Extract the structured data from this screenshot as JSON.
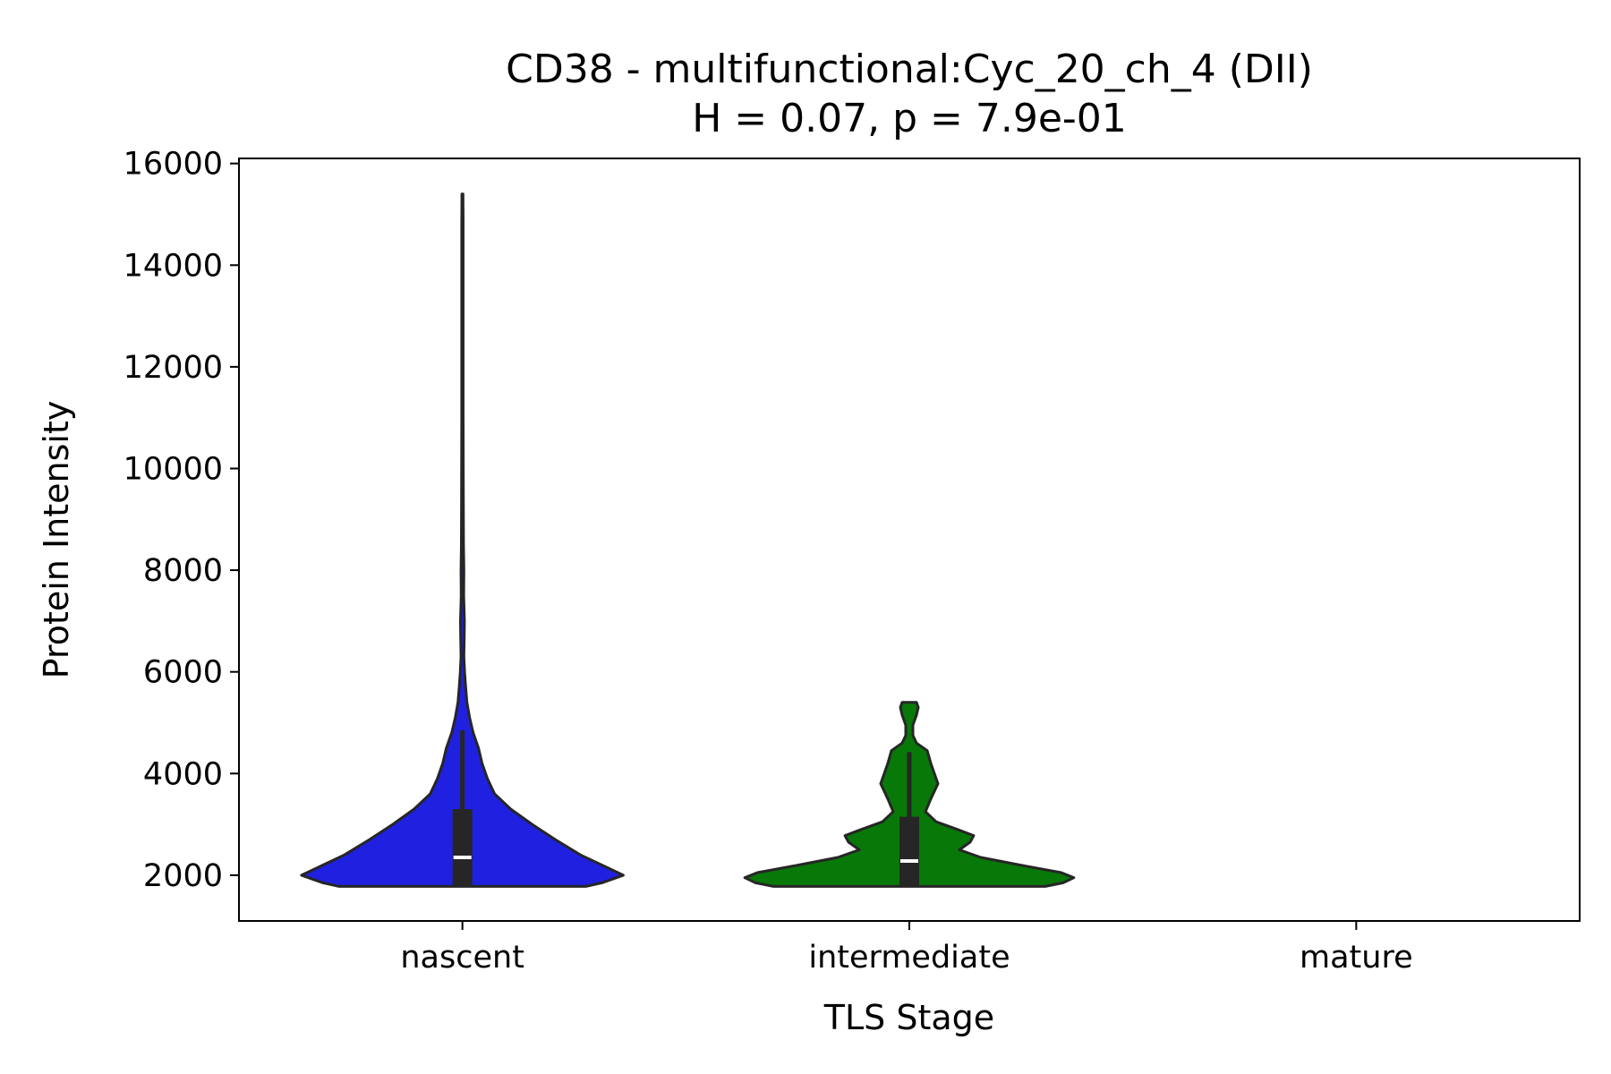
{
  "chart_data": {
    "type": "violin",
    "title": "CD38 - multifunctional:Cyc_20_ch_4 (DII)",
    "subtitle": "H = 0.07, p = 7.9e-01",
    "xlabel": "TLS Stage",
    "ylabel": "Protein Intensity",
    "categories": [
      "nascent",
      "intermediate",
      "mature"
    ],
    "ylim": [
      1100,
      16100
    ],
    "yticks": [
      2000,
      4000,
      6000,
      8000,
      10000,
      12000,
      14000,
      16000
    ],
    "ytick_labels": [
      "2000",
      "4000",
      "6000",
      "8000",
      "10000",
      "12000",
      "14000",
      "16000"
    ],
    "grid": false,
    "legend": "none",
    "series": [
      {
        "category": "nascent",
        "color": "#2020e0",
        "min": 1780,
        "max": 15400,
        "q1": 1780,
        "median": 2350,
        "q3": 3300,
        "whisker_low": 1780,
        "whisker_high": 4850,
        "density": [
          [
            1780,
            0.69
          ],
          [
            1850,
            0.78
          ],
          [
            2000,
            0.9
          ],
          [
            2150,
            0.81
          ],
          [
            2400,
            0.66
          ],
          [
            2700,
            0.52
          ],
          [
            3000,
            0.39
          ],
          [
            3300,
            0.27
          ],
          [
            3600,
            0.18
          ],
          [
            3900,
            0.14
          ],
          [
            4200,
            0.11
          ],
          [
            4500,
            0.09
          ],
          [
            4800,
            0.06
          ],
          [
            5100,
            0.04
          ],
          [
            5400,
            0.025
          ],
          [
            5700,
            0.018
          ],
          [
            6000,
            0.012
          ],
          [
            6300,
            0.008
          ],
          [
            6700,
            0.01
          ],
          [
            7000,
            0.011
          ],
          [
            7500,
            0.007
          ],
          [
            8000,
            0.008
          ],
          [
            8500,
            0.006
          ],
          [
            9500,
            0.005
          ],
          [
            11000,
            0.004
          ],
          [
            13000,
            0.004
          ],
          [
            14800,
            0.004
          ],
          [
            15400,
            0.003
          ]
        ]
      },
      {
        "category": "intermediate",
        "color": "#087808",
        "min": 1780,
        "max": 5400,
        "q1": 1780,
        "median": 2280,
        "q3": 3150,
        "whisker_low": 1780,
        "whisker_high": 4420,
        "density": [
          [
            1780,
            0.76
          ],
          [
            1850,
            0.86
          ],
          [
            1950,
            0.92
          ],
          [
            2050,
            0.85
          ],
          [
            2200,
            0.62
          ],
          [
            2350,
            0.4
          ],
          [
            2500,
            0.28
          ],
          [
            2650,
            0.34
          ],
          [
            2780,
            0.36
          ],
          [
            2900,
            0.27
          ],
          [
            3050,
            0.15
          ],
          [
            3250,
            0.09
          ],
          [
            3500,
            0.12
          ],
          [
            3800,
            0.16
          ],
          [
            4000,
            0.14
          ],
          [
            4200,
            0.12
          ],
          [
            4450,
            0.1
          ],
          [
            4600,
            0.04
          ],
          [
            4750,
            0.02
          ],
          [
            4950,
            0.02
          ],
          [
            5150,
            0.04
          ],
          [
            5300,
            0.05
          ],
          [
            5400,
            0.04
          ]
        ]
      },
      {
        "category": "mature",
        "color": "#000000",
        "density": []
      }
    ]
  }
}
